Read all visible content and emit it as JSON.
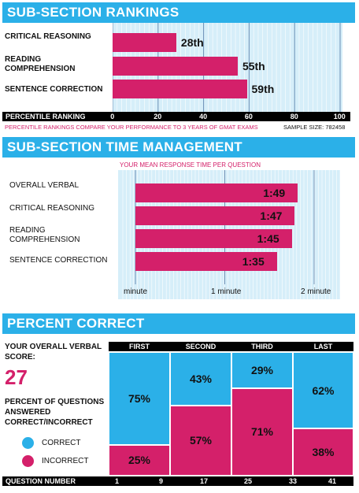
{
  "rankings": {
    "title": "SUB-SECTION RANKINGS",
    "rows": [
      {
        "label": "CRITICAL REASONING",
        "value": 28,
        "value_label": "28th"
      },
      {
        "label": "READING COMPREHENSION",
        "value": 55,
        "value_label": "55th"
      },
      {
        "label": "SENTENCE CORRECTION",
        "value": 59,
        "value_label": "59th"
      }
    ],
    "axis_title": "PERCENTILE RANKING",
    "ticks": [
      "0",
      "20",
      "40",
      "60",
      "80",
      "100"
    ],
    "note": "PERCENTILE RANKINGS COMPARE YOUR PERFORMANCE TO 3 YEARS OF GMAT EXAMS",
    "sample": "SAMPLE SIZE: 782458"
  },
  "time": {
    "title": "SUB-SECTION TIME MANAGEMENT",
    "subtitle": "YOUR MEAN RESPONSE TIME PER QUESTION",
    "rows": [
      {
        "label": "OVERALL VERBAL",
        "seconds": 109,
        "value_label": "1:49"
      },
      {
        "label": "CRITICAL REASONING",
        "seconds": 107,
        "value_label": "1:47"
      },
      {
        "label": "READING COMPREHENSION",
        "seconds": 105,
        "value_label": "1:45"
      },
      {
        "label": "SENTENCE CORRECTION",
        "seconds": 95,
        "value_label": "1:35"
      }
    ],
    "axis_ticks": [
      "minute",
      "1 minute",
      "2 minute"
    ]
  },
  "percent": {
    "title": "PERCENT CORRECT",
    "score_label": "YOUR OVERALL VERBAL SCORE:",
    "score": "27",
    "answered_label": "PERCENT OF QUESTIONS ANSWERED CORRECT/INCORRECT",
    "legend_correct": "CORRECT",
    "legend_incorrect": "INCORRECT",
    "columns": [
      {
        "name": "FIRST",
        "correct": 75,
        "incorrect": 25,
        "correct_label": "75%",
        "incorrect_label": "25%"
      },
      {
        "name": "SECOND",
        "correct": 43,
        "incorrect": 57,
        "correct_label": "43%",
        "incorrect_label": "57%"
      },
      {
        "name": "THIRD",
        "correct": 29,
        "incorrect": 71,
        "correct_label": "29%",
        "incorrect_label": "71%"
      },
      {
        "name": "LAST",
        "correct": 62,
        "incorrect": 38,
        "correct_label": "62%",
        "incorrect_label": "38%"
      }
    ],
    "axis_title": "QUESTION NUMBER",
    "ticks": [
      "1",
      "9",
      "17",
      "25",
      "33",
      "41"
    ]
  },
  "colors": {
    "blue": "#2bb0e8",
    "pink": "#d4206a",
    "grid_bg": "#d6eef9"
  },
  "chart_data": [
    {
      "type": "bar",
      "title": "SUB-SECTION RANKINGS",
      "xlabel": "PERCENTILE RANKING",
      "categories": [
        "CRITICAL REASONING",
        "READING COMPREHENSION",
        "SENTENCE CORRECTION"
      ],
      "values": [
        28,
        55,
        59
      ],
      "xlim": [
        0,
        100
      ]
    },
    {
      "type": "bar",
      "title": "SUB-SECTION TIME MANAGEMENT",
      "categories": [
        "OVERALL VERBAL",
        "CRITICAL REASONING",
        "READING COMPREHENSION",
        "SENTENCE CORRECTION"
      ],
      "values": [
        "1:49",
        "1:47",
        "1:45",
        "1:35"
      ]
    },
    {
      "type": "bar",
      "title": "PERCENT CORRECT",
      "xlabel": "QUESTION NUMBER",
      "categories": [
        "FIRST",
        "SECOND",
        "THIRD",
        "LAST"
      ],
      "series": [
        {
          "name": "CORRECT",
          "values": [
            75,
            43,
            29,
            62
          ]
        },
        {
          "name": "INCORRECT",
          "values": [
            25,
            57,
            71,
            38
          ]
        }
      ]
    }
  ]
}
